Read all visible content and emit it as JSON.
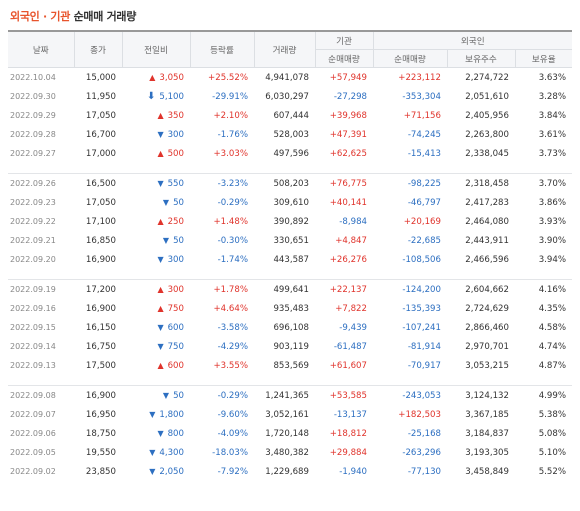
{
  "title": {
    "part1": "외국인 · 기관",
    "part2": "순매매 거래량"
  },
  "headers": {
    "date": "날짜",
    "close": "종가",
    "change": "전일비",
    "rate": "등락률",
    "volume": "거래량",
    "inst": "기관",
    "foreign": "외국인",
    "inst_net": "순매매량",
    "foreign_net": "순매매량",
    "holdings": "보유주수",
    "ratio": "보유율"
  },
  "colors": {
    "up": "#e0342c",
    "down": "#2d6fc1"
  },
  "groups": [
    [
      {
        "date": "2022.10.04",
        "close": "15,000",
        "dir": "up",
        "arrow": "▲",
        "change": "3,050",
        "rate": "+25.52%",
        "volume": "4,941,078",
        "inst": "+57,949",
        "foreign": "+223,112",
        "holdings": "2,274,722",
        "ratio": "3.63%"
      },
      {
        "date": "2022.09.30",
        "close": "11,950",
        "dir": "down",
        "arrow": "⬇",
        "change": "5,100",
        "rate": "-29.91%",
        "volume": "6,030,297",
        "inst": "-27,298",
        "foreign": "-353,304",
        "holdings": "2,051,610",
        "ratio": "3.28%"
      },
      {
        "date": "2022.09.29",
        "close": "17,050",
        "dir": "up",
        "arrow": "▲",
        "change": "350",
        "rate": "+2.10%",
        "volume": "607,444",
        "inst": "+39,968",
        "foreign": "+71,156",
        "holdings": "2,405,956",
        "ratio": "3.84%"
      },
      {
        "date": "2022.09.28",
        "close": "16,700",
        "dir": "down",
        "arrow": "▼",
        "change": "300",
        "rate": "-1.76%",
        "volume": "528,003",
        "inst": "+47,391",
        "foreign": "-74,245",
        "holdings": "2,263,800",
        "ratio": "3.61%"
      },
      {
        "date": "2022.09.27",
        "close": "17,000",
        "dir": "up",
        "arrow": "▲",
        "change": "500",
        "rate": "+3.03%",
        "volume": "497,596",
        "inst": "+62,625",
        "foreign": "-15,413",
        "holdings": "2,338,045",
        "ratio": "3.73%"
      }
    ],
    [
      {
        "date": "2022.09.26",
        "close": "16,500",
        "dir": "down",
        "arrow": "▼",
        "change": "550",
        "rate": "-3.23%",
        "volume": "508,203",
        "inst": "+76,775",
        "foreign": "-98,225",
        "holdings": "2,318,458",
        "ratio": "3.70%"
      },
      {
        "date": "2022.09.23",
        "close": "17,050",
        "dir": "down",
        "arrow": "▼",
        "change": "50",
        "rate": "-0.29%",
        "volume": "309,610",
        "inst": "+40,141",
        "foreign": "-46,797",
        "holdings": "2,417,283",
        "ratio": "3.86%"
      },
      {
        "date": "2022.09.22",
        "close": "17,100",
        "dir": "up",
        "arrow": "▲",
        "change": "250",
        "rate": "+1.48%",
        "volume": "390,892",
        "inst": "-8,984",
        "foreign": "+20,169",
        "holdings": "2,464,080",
        "ratio": "3.93%"
      },
      {
        "date": "2022.09.21",
        "close": "16,850",
        "dir": "down",
        "arrow": "▼",
        "change": "50",
        "rate": "-0.30%",
        "volume": "330,651",
        "inst": "+4,847",
        "foreign": "-22,685",
        "holdings": "2,443,911",
        "ratio": "3.90%"
      },
      {
        "date": "2022.09.20",
        "close": "16,900",
        "dir": "down",
        "arrow": "▼",
        "change": "300",
        "rate": "-1.74%",
        "volume": "443,587",
        "inst": "+26,276",
        "foreign": "-108,506",
        "holdings": "2,466,596",
        "ratio": "3.94%"
      }
    ],
    [
      {
        "date": "2022.09.19",
        "close": "17,200",
        "dir": "up",
        "arrow": "▲",
        "change": "300",
        "rate": "+1.78%",
        "volume": "499,641",
        "inst": "+22,137",
        "foreign": "-124,200",
        "holdings": "2,604,662",
        "ratio": "4.16%"
      },
      {
        "date": "2022.09.16",
        "close": "16,900",
        "dir": "up",
        "arrow": "▲",
        "change": "750",
        "rate": "+4.64%",
        "volume": "935,483",
        "inst": "+7,822",
        "foreign": "-135,393",
        "holdings": "2,724,629",
        "ratio": "4.35%"
      },
      {
        "date": "2022.09.15",
        "close": "16,150",
        "dir": "down",
        "arrow": "▼",
        "change": "600",
        "rate": "-3.58%",
        "volume": "696,108",
        "inst": "-9,439",
        "foreign": "-107,241",
        "holdings": "2,866,460",
        "ratio": "4.58%"
      },
      {
        "date": "2022.09.14",
        "close": "16,750",
        "dir": "down",
        "arrow": "▼",
        "change": "750",
        "rate": "-4.29%",
        "volume": "903,119",
        "inst": "-61,487",
        "foreign": "-81,914",
        "holdings": "2,970,701",
        "ratio": "4.74%"
      },
      {
        "date": "2022.09.13",
        "close": "17,500",
        "dir": "up",
        "arrow": "▲",
        "change": "600",
        "rate": "+3.55%",
        "volume": "853,569",
        "inst": "+61,607",
        "foreign": "-70,917",
        "holdings": "3,053,215",
        "ratio": "4.87%"
      }
    ],
    [
      {
        "date": "2022.09.08",
        "close": "16,900",
        "dir": "down",
        "arrow": "▼",
        "change": "50",
        "rate": "-0.29%",
        "volume": "1,241,365",
        "inst": "+53,585",
        "foreign": "-243,053",
        "holdings": "3,124,132",
        "ratio": "4.99%"
      },
      {
        "date": "2022.09.07",
        "close": "16,950",
        "dir": "down",
        "arrow": "▼",
        "change": "1,800",
        "rate": "-9.60%",
        "volume": "3,052,161",
        "inst": "-13,137",
        "foreign": "+182,503",
        "holdings": "3,367,185",
        "ratio": "5.38%"
      },
      {
        "date": "2022.09.06",
        "close": "18,750",
        "dir": "down",
        "arrow": "▼",
        "change": "800",
        "rate": "-4.09%",
        "volume": "1,720,148",
        "inst": "+18,812",
        "foreign": "-25,168",
        "holdings": "3,184,837",
        "ratio": "5.08%"
      },
      {
        "date": "2022.09.05",
        "close": "19,550",
        "dir": "down",
        "arrow": "▼",
        "change": "4,300",
        "rate": "-18.03%",
        "volume": "3,480,382",
        "inst": "+29,884",
        "foreign": "-263,296",
        "holdings": "3,193,305",
        "ratio": "5.10%"
      },
      {
        "date": "2022.09.02",
        "close": "23,850",
        "dir": "down",
        "arrow": "▼",
        "change": "2,050",
        "rate": "-7.92%",
        "volume": "1,229,689",
        "inst": "-1,940",
        "foreign": "-77,130",
        "holdings": "3,458,849",
        "ratio": "5.52%"
      }
    ]
  ]
}
